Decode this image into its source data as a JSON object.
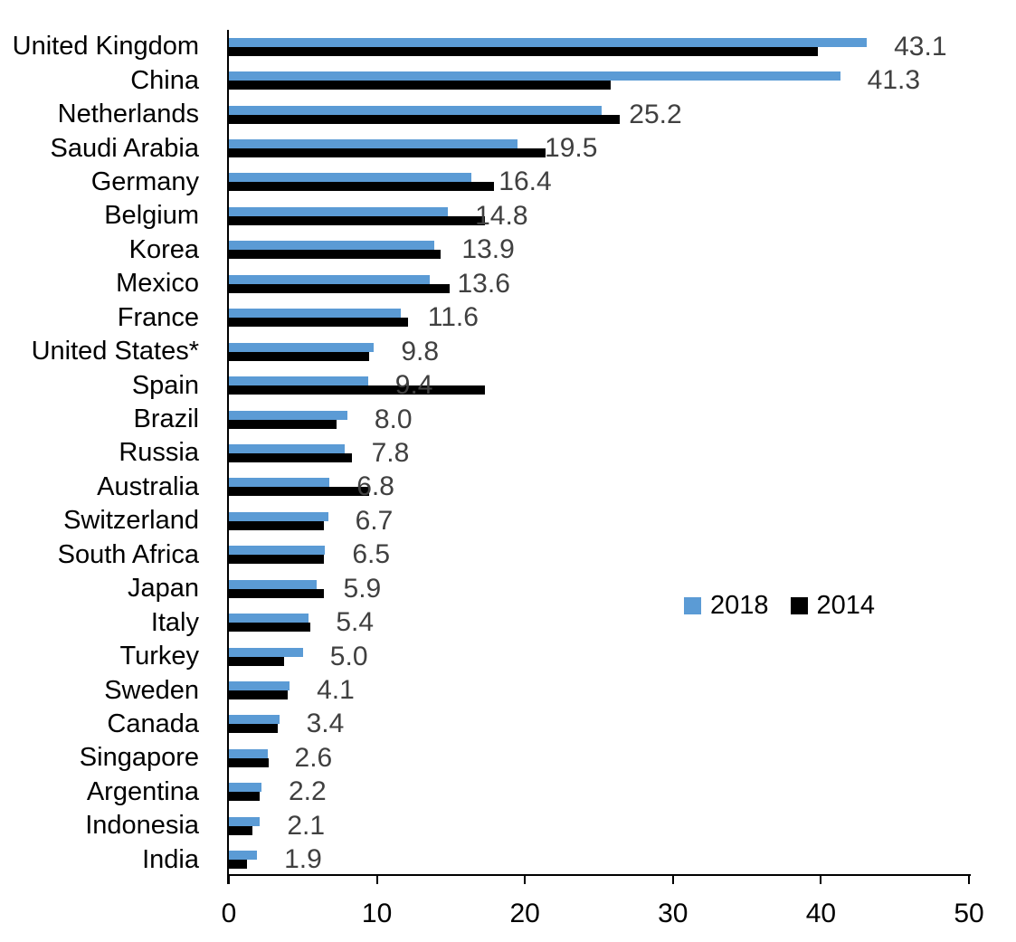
{
  "chart_data": {
    "type": "bar",
    "orientation": "horizontal",
    "title": "",
    "xlabel": "",
    "ylabel": "",
    "xlim": [
      0,
      50
    ],
    "x_ticks": [
      "0",
      "10",
      "20",
      "30",
      "40",
      "50"
    ],
    "grid": false,
    "background": "#ffffff",
    "categories": [
      "United Kingdom",
      "China",
      "Netherlands",
      "Saudi Arabia",
      "Germany",
      "Belgium",
      "Korea",
      "Mexico",
      "France",
      "United States*",
      "Spain",
      "Brazil",
      "Russia",
      "Australia",
      "Switzerland",
      "South Africa",
      "Japan",
      "Italy",
      "Turkey",
      "Sweden",
      "Canada",
      "Singapore",
      "Argentina",
      "Indonesia",
      "India"
    ],
    "series": [
      {
        "name": "2018",
        "color": "#5B9BD5",
        "values": [
          43.1,
          41.3,
          25.2,
          19.5,
          16.4,
          14.8,
          13.9,
          13.6,
          11.6,
          9.8,
          9.4,
          8.0,
          7.8,
          6.8,
          6.7,
          6.5,
          5.9,
          5.4,
          5.0,
          4.1,
          3.4,
          2.6,
          2.2,
          2.1,
          1.9
        ]
      },
      {
        "name": "2014",
        "color": "#000000",
        "values": [
          39.8,
          25.8,
          26.4,
          21.4,
          17.9,
          17.3,
          14.3,
          14.9,
          12.1,
          9.5,
          17.3,
          7.3,
          8.3,
          9.5,
          6.4,
          6.4,
          6.4,
          5.5,
          3.7,
          4.0,
          3.3,
          2.7,
          2.1,
          1.6,
          1.2
        ]
      }
    ],
    "data_labels": {
      "attached_to_series": "2018",
      "color": "#404040",
      "values": [
        "43.1",
        "41.3",
        "25.2",
        "19.5",
        "16.4",
        "14.8",
        "13.9",
        "13.6",
        "11.6",
        "9.8",
        "9.4",
        "8.0",
        "7.8",
        "6.8",
        "6.7",
        "6.5",
        "5.9",
        "5.4",
        "5.0",
        "4.1",
        "3.4",
        "2.6",
        "2.2",
        "2.1",
        "1.9"
      ]
    },
    "legend": {
      "position": "middle-right",
      "entries": [
        "2018",
        "2014"
      ]
    }
  }
}
